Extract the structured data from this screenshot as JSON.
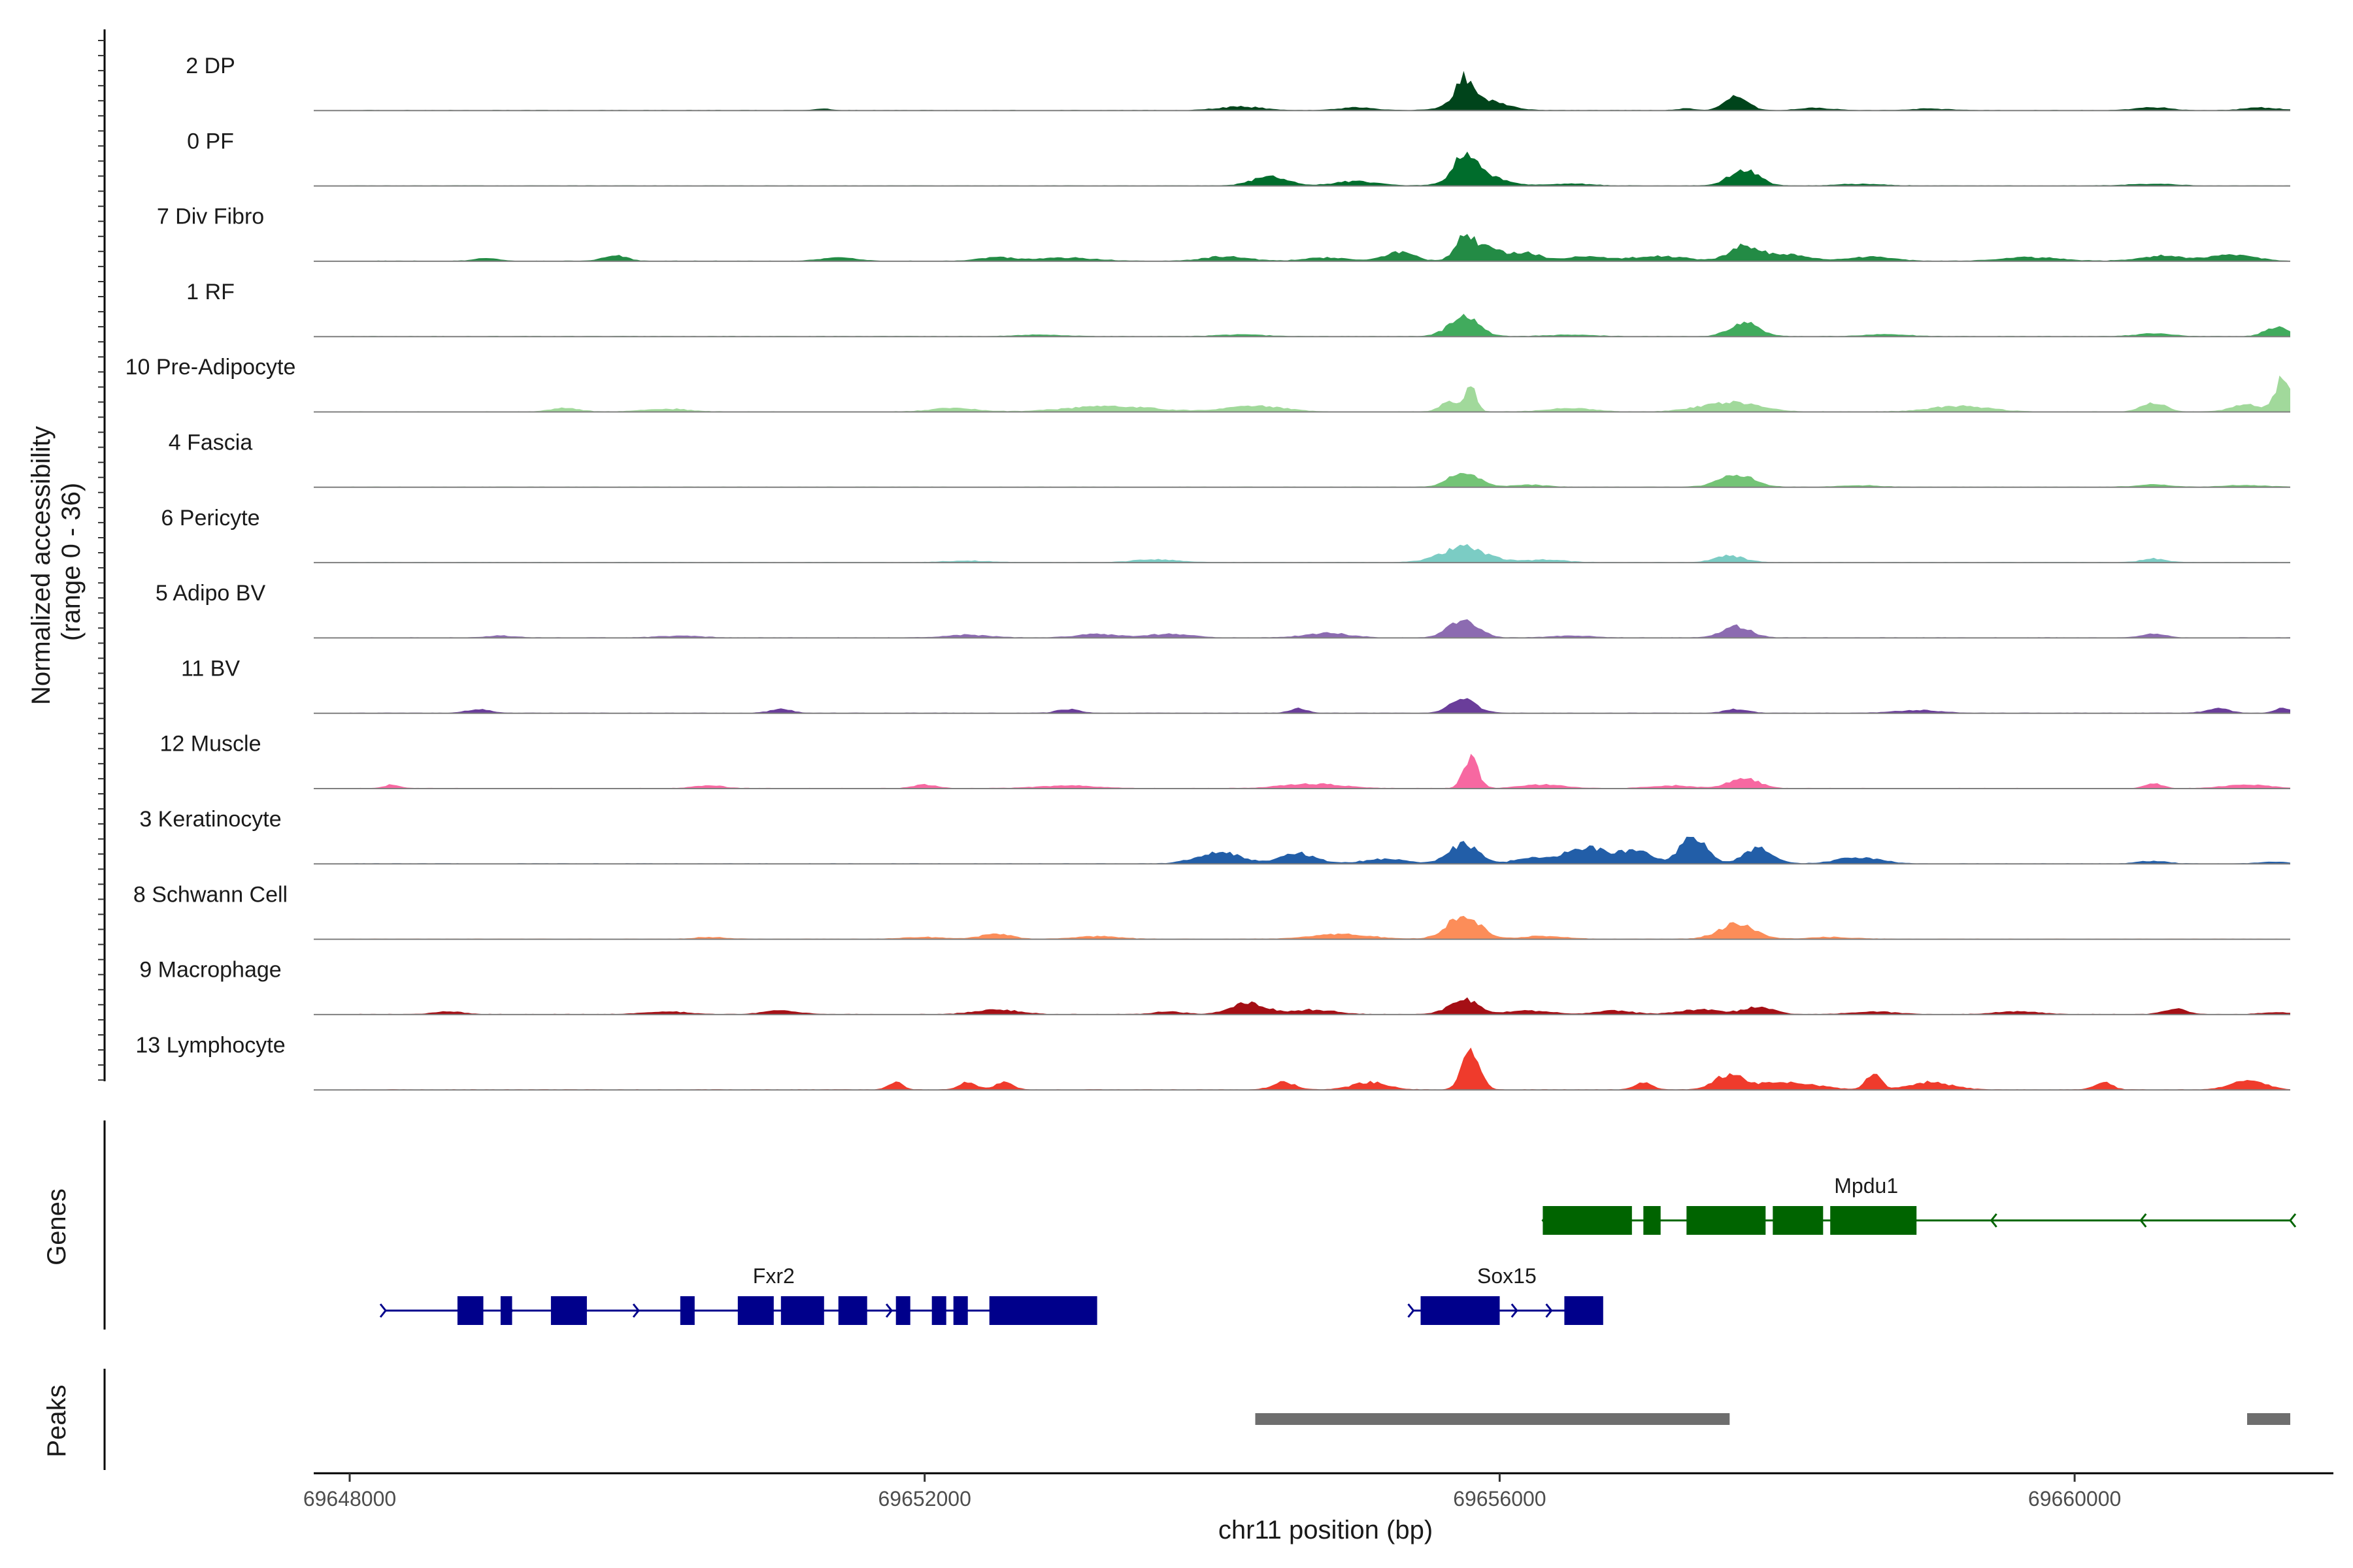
{
  "chart_data": {
    "type": "area",
    "y_axis_title_line1": "Normalized accessibility",
    "y_axis_title_line2": "(range 0 - 36)",
    "ylim": [
      0,
      36
    ],
    "x_axis_title": "chr11 position (bp)",
    "xlim": [
      69647750,
      69661800
    ],
    "x_ticks": [
      69648000,
      69652000,
      69656000,
      69660000
    ],
    "x_tick_labels": [
      "69648000",
      "69652000",
      "69656000",
      "69660000"
    ],
    "data_range": [
      69648000,
      69661500
    ],
    "tracks": [
      {
        "name": "2 DP",
        "color": "#00441b",
        "peaks": [
          [
            69651300,
            0.8,
            60
          ],
          [
            69654200,
            2.0,
            150
          ],
          [
            69655000,
            1.5,
            120
          ],
          [
            69655750,
            13.5,
            60
          ],
          [
            69655850,
            6.0,
            160
          ],
          [
            69657300,
            0.9,
            60
          ],
          [
            69657650,
            7.5,
            80
          ],
          [
            69658200,
            1.2,
            120
          ],
          [
            69659000,
            0.8,
            150
          ],
          [
            69660550,
            1.6,
            120
          ],
          [
            69661300,
            1.5,
            120
          ]
        ]
      },
      {
        "name": "0 PF",
        "color": "#006d2c",
        "peaks": [
          [
            69654400,
            5.0,
            120
          ],
          [
            69655000,
            2.4,
            150
          ],
          [
            69655750,
            12.5,
            70
          ],
          [
            69655850,
            7.0,
            150
          ],
          [
            69656500,
            1.0,
            150
          ],
          [
            69657700,
            9.0,
            100
          ],
          [
            69658500,
            0.9,
            150
          ],
          [
            69660550,
            1.0,
            150
          ]
        ]
      },
      {
        "name": "7 Div Fibro",
        "color": "#238b45",
        "peaks": [
          [
            69648950,
            1.5,
            80
          ],
          [
            69649850,
            3.0,
            80
          ],
          [
            69651400,
            1.8,
            120
          ],
          [
            69652500,
            2.0,
            120
          ],
          [
            69653000,
            1.7,
            200
          ],
          [
            69654100,
            2.5,
            150
          ],
          [
            69654800,
            1.8,
            150
          ],
          [
            69655300,
            5.0,
            100
          ],
          [
            69655750,
            12.0,
            60
          ],
          [
            69655900,
            7.0,
            120
          ],
          [
            69656200,
            4.0,
            100
          ],
          [
            69656600,
            2.5,
            120
          ],
          [
            69657100,
            2.5,
            200
          ],
          [
            69657700,
            8.0,
            100
          ],
          [
            69658000,
            3.5,
            150
          ],
          [
            69658600,
            2.4,
            150
          ],
          [
            69659700,
            2.0,
            200
          ],
          [
            69660600,
            2.8,
            150
          ],
          [
            69661100,
            3.5,
            150
          ]
        ]
      },
      {
        "name": "1 RF",
        "color": "#41ab5d",
        "peaks": [
          [
            69652800,
            0.8,
            150
          ],
          [
            69654200,
            1.0,
            150
          ],
          [
            69655750,
            11.0,
            100
          ],
          [
            69656500,
            0.9,
            150
          ],
          [
            69657700,
            7.5,
            100
          ],
          [
            69658700,
            1.0,
            150
          ],
          [
            69660550,
            1.5,
            120
          ],
          [
            69661400,
            5.0,
            80
          ]
        ]
      },
      {
        "name": "10 Pre-Adipocyte",
        "color": "#a1d99b",
        "peaks": [
          [
            69649500,
            2.0,
            100
          ],
          [
            69650200,
            1.5,
            150
          ],
          [
            69652200,
            2.0,
            150
          ],
          [
            69653300,
            3.0,
            300
          ],
          [
            69654300,
            3.0,
            200
          ],
          [
            69655650,
            6.0,
            60
          ],
          [
            69655800,
            13.0,
            40
          ],
          [
            69656500,
            2.0,
            150
          ],
          [
            69657600,
            5.0,
            200
          ],
          [
            69659200,
            3.0,
            200
          ],
          [
            69660550,
            5.0,
            80
          ],
          [
            69661200,
            4.0,
            100
          ],
          [
            69661450,
            20.0,
            50
          ]
        ]
      },
      {
        "name": "4 Fascia",
        "color": "#74c476",
        "peaks": [
          [
            69655750,
            8.0,
            100
          ],
          [
            69656200,
            1.2,
            120
          ],
          [
            69657650,
            6.5,
            120
          ],
          [
            69658500,
            0.8,
            150
          ],
          [
            69660550,
            1.2,
            120
          ],
          [
            69661200,
            1.0,
            150
          ]
        ]
      },
      {
        "name": "6 Pericyte",
        "color": "#7bccc4",
        "peaks": [
          [
            69652300,
            0.8,
            150
          ],
          [
            69653600,
            1.5,
            150
          ],
          [
            69655750,
            8.5,
            150
          ],
          [
            69656300,
            1.3,
            150
          ],
          [
            69657600,
            3.5,
            100
          ],
          [
            69660550,
            2.0,
            80
          ]
        ]
      },
      {
        "name": "5 Adipo BV",
        "color": "#8c6bb1",
        "peaks": [
          [
            69649050,
            1.0,
            100
          ],
          [
            69650300,
            1.0,
            150
          ],
          [
            69652300,
            1.5,
            150
          ],
          [
            69653200,
            1.8,
            150
          ],
          [
            69653700,
            2.0,
            150
          ],
          [
            69654800,
            2.5,
            150
          ],
          [
            69655750,
            10.0,
            100
          ],
          [
            69656500,
            1.0,
            150
          ],
          [
            69657650,
            6.0,
            100
          ],
          [
            69660550,
            2.0,
            80
          ]
        ]
      },
      {
        "name": "11 BV",
        "color": "#6a3d9a",
        "peaks": [
          [
            69648900,
            2.0,
            80
          ],
          [
            69651000,
            2.0,
            80
          ],
          [
            69653000,
            2.0,
            80
          ],
          [
            69654600,
            2.5,
            60
          ],
          [
            69655750,
            7.5,
            90
          ],
          [
            69657650,
            2.0,
            80
          ],
          [
            69658900,
            1.5,
            150
          ],
          [
            69661000,
            2.5,
            80
          ],
          [
            69661450,
            3.0,
            50
          ]
        ]
      },
      {
        "name": "12 Muscle",
        "color": "#f768a1",
        "peaks": [
          [
            69648300,
            2.0,
            50
          ],
          [
            69650500,
            1.5,
            100
          ],
          [
            69652000,
            2.0,
            80
          ],
          [
            69653000,
            1.5,
            200
          ],
          [
            69654700,
            2.5,
            200
          ],
          [
            69655800,
            17.0,
            50
          ],
          [
            69656300,
            2.0,
            150
          ],
          [
            69657200,
            1.5,
            150
          ],
          [
            69657700,
            6.0,
            100
          ],
          [
            69660550,
            2.5,
            60
          ],
          [
            69661200,
            2.0,
            150
          ]
        ]
      },
      {
        "name": "3 Keratinocyte",
        "color": "#225ea8",
        "peaks": [
          [
            69654050,
            6.5,
            150
          ],
          [
            69654600,
            5.5,
            120
          ],
          [
            69655200,
            2.5,
            150
          ],
          [
            69655750,
            11.0,
            100
          ],
          [
            69656200,
            3.0,
            100
          ],
          [
            69656600,
            9.0,
            150
          ],
          [
            69656950,
            7.0,
            100
          ],
          [
            69657350,
            15.0,
            90
          ],
          [
            69657800,
            8.0,
            100
          ],
          [
            69658500,
            3.5,
            150
          ],
          [
            69660550,
            1.5,
            100
          ],
          [
            69661400,
            1.0,
            100
          ]
        ]
      },
      {
        "name": "8 Schwann Cell",
        "color": "#fc8d59",
        "peaks": [
          [
            69650500,
            1.0,
            100
          ],
          [
            69652000,
            1.0,
            150
          ],
          [
            69652500,
            3.0,
            100
          ],
          [
            69653200,
            1.5,
            150
          ],
          [
            69654900,
            2.5,
            200
          ],
          [
            69655750,
            13.0,
            110
          ],
          [
            69656300,
            1.5,
            150
          ],
          [
            69657650,
            8.5,
            120
          ],
          [
            69658300,
            1.0,
            150
          ]
        ]
      },
      {
        "name": "9 Macrophage",
        "color": "#a50f15",
        "peaks": [
          [
            69648700,
            1.5,
            100
          ],
          [
            69650200,
            1.5,
            150
          ],
          [
            69651000,
            2.0,
            120
          ],
          [
            69652500,
            2.5,
            150
          ],
          [
            69653700,
            1.5,
            100
          ],
          [
            69654250,
            6.0,
            120
          ],
          [
            69654700,
            2.5,
            150
          ],
          [
            69655750,
            8.0,
            100
          ],
          [
            69656200,
            2.0,
            150
          ],
          [
            69656800,
            2.0,
            120
          ],
          [
            69657400,
            2.5,
            150
          ],
          [
            69657800,
            4.0,
            100
          ],
          [
            69658600,
            1.5,
            150
          ],
          [
            69659600,
            1.5,
            150
          ],
          [
            69660700,
            3.0,
            80
          ],
          [
            69661400,
            1.0,
            100
          ]
        ]
      },
      {
        "name": "13 Lymphocyte",
        "color": "#ef3b2c",
        "peaks": [
          [
            69651800,
            4.0,
            50
          ],
          [
            69652300,
            4.0,
            60
          ],
          [
            69652550,
            4.0,
            60
          ],
          [
            69654500,
            4.0,
            80
          ],
          [
            69655100,
            4.0,
            120
          ],
          [
            69655800,
            22.0,
            60
          ],
          [
            69657000,
            4.0,
            60
          ],
          [
            69657600,
            8.0,
            100
          ],
          [
            69658000,
            4.0,
            200
          ],
          [
            69658600,
            9.0,
            50
          ],
          [
            69659000,
            4.0,
            150
          ],
          [
            69660200,
            4.0,
            60
          ],
          [
            69661200,
            5.0,
            120
          ]
        ]
      }
    ],
    "genes": {
      "title": "Genes",
      "items": [
        {
          "name": "Mpdu1",
          "strand": "-",
          "color": "#006400",
          "start": 69656300,
          "end": 69661500,
          "exons": [
            [
              69656300,
              69656920
            ],
            [
              69657000,
              69657120
            ],
            [
              69657300,
              69657850
            ],
            [
              69657900,
              69658250
            ],
            [
              69658300,
              69658900
            ]
          ]
        },
        {
          "name": "Fxr2",
          "strand": "+",
          "color": "#00008b",
          "start": 69648250,
          "end": 69652650,
          "exons": [
            [
              69648750,
              69648930
            ],
            [
              69649050,
              69649130
            ],
            [
              69649400,
              69649650
            ],
            [
              69650300,
              69650400
            ],
            [
              69650700,
              69650950
            ],
            [
              69651000,
              69651300
            ],
            [
              69651400,
              69651600
            ],
            [
              69651800,
              69651900
            ],
            [
              69652050,
              69652150
            ],
            [
              69652200,
              69652300
            ],
            [
              69652450,
              69653200
            ]
          ]
        },
        {
          "name": "Sox15",
          "strand": "+",
          "color": "#00008b",
          "start": 69655400,
          "end": 69656600,
          "exons": [
            [
              69655450,
              69656000
            ],
            [
              69656450,
              69656720
            ]
          ]
        }
      ]
    },
    "peaks": {
      "title": "Peaks",
      "color": "#6e6e6e",
      "regions": [
        [
          69654300,
          69657600
        ],
        [
          69661200,
          69661500
        ]
      ]
    }
  }
}
